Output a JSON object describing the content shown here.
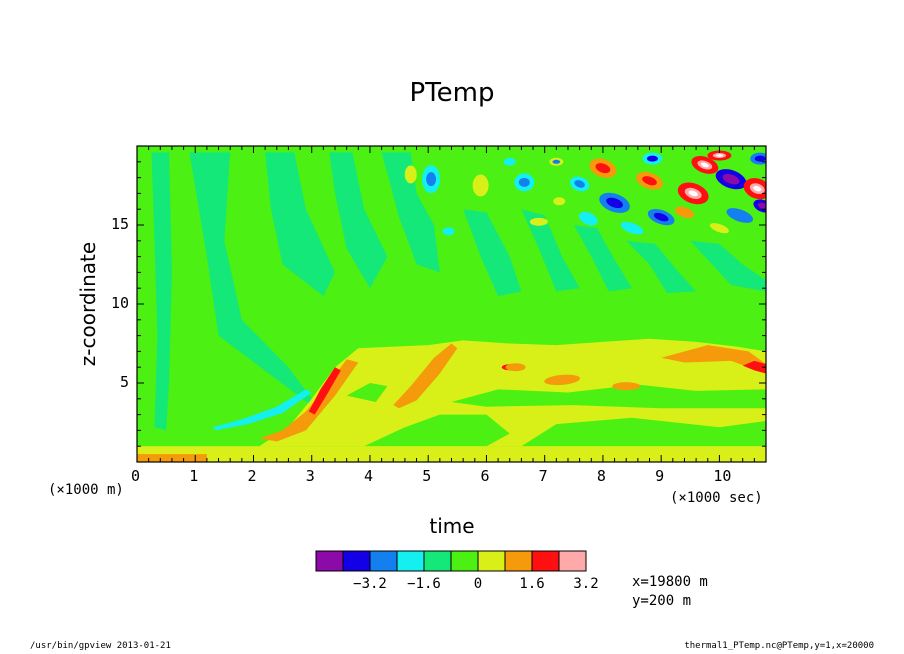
{
  "chart_data": {
    "type": "heatmap",
    "title": "PTemp",
    "xlabel": "time",
    "ylabel": "z-coordinate",
    "x_unit_label": "(×1000 sec)",
    "secondary_unit_label": "(×1000 m)",
    "xlim": [
      0,
      10.8
    ],
    "ylim": [
      0,
      20
    ],
    "x_ticks": [
      0,
      1,
      2,
      3,
      4,
      5,
      6,
      7,
      8,
      9,
      10
    ],
    "y_ticks": [
      5,
      10,
      15
    ],
    "colorbar": {
      "colors": [
        "#8b0aa8",
        "#1400e6",
        "#1480f0",
        "#14f0f0",
        "#14e878",
        "#4cf012",
        "#d8f018",
        "#f59a0a",
        "#ff1010",
        "#ffaaaa"
      ],
      "tick_labels": [
        "−3.2",
        "−1.6",
        "0",
        "1.6",
        "3.2"
      ],
      "levels": [
        -3.2,
        -1.6,
        0,
        1.6,
        3.2
      ]
    },
    "background_color": "#4cf012",
    "features": [
      {
        "kind": "band",
        "color": "#f59a0a",
        "x": [
          0,
          1.2
        ],
        "y": [
          0,
          0.5
        ]
      },
      {
        "kind": "band",
        "color": "#d8f018",
        "x": [
          0,
          10.8
        ],
        "y": [
          0,
          1.0
        ]
      },
      {
        "kind": "plume",
        "color": "#d8f018",
        "x": [
          2.2,
          10.8
        ],
        "y": [
          0.5,
          7.5
        ]
      },
      {
        "kind": "streak",
        "color": "#f59a0a",
        "x": [
          2.1,
          3.6
        ],
        "y": [
          1.5,
          6.5
        ]
      },
      {
        "kind": "streak",
        "color": "#ff1010",
        "x": [
          2.9,
          3.5
        ],
        "y": [
          3.0,
          6.0
        ]
      },
      {
        "kind": "streak",
        "color": "#14f0f0",
        "x": [
          1.3,
          3.0
        ],
        "y": [
          2.2,
          4.8
        ]
      },
      {
        "kind": "streak",
        "color": "#f59a0a",
        "x": [
          4.4,
          5.4
        ],
        "y": [
          3.6,
          7.5
        ]
      },
      {
        "kind": "streak",
        "color": "#f59a0a",
        "x": [
          9.0,
          10.8
        ],
        "y": [
          5.5,
          7.5
        ]
      },
      {
        "kind": "waves",
        "x": [
          5.0,
          10.8
        ],
        "y": [
          14.0,
          19.6
        ],
        "amplitude_grows_with_time": true
      }
    ]
  },
  "info": {
    "x_position": "x=19800 m",
    "y_position": "y=200 m"
  },
  "footer": {
    "left": "/usr/bin/gpview  2013-01-21",
    "right": "thermal1_PTemp.nc@PTemp,y=1,x=20000"
  }
}
